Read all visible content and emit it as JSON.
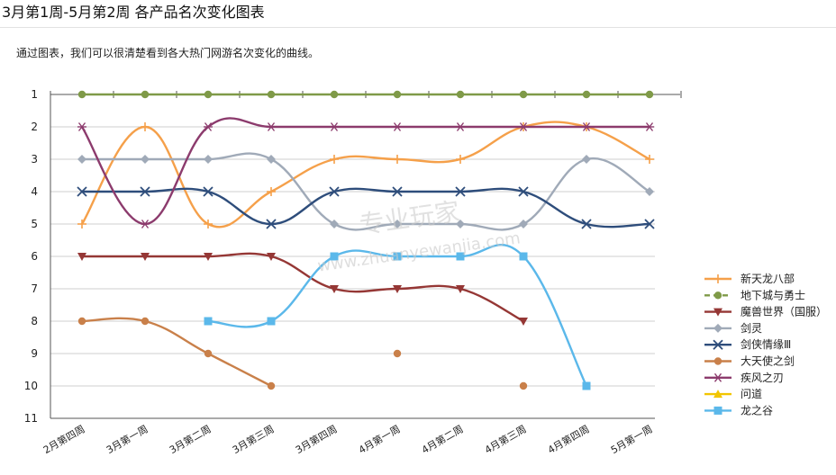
{
  "page": {
    "title": "3月第1周-5月第2周 各产品名次变化图表",
    "subtitle": "通过图表，我们可以很清楚看到各大热门网游名次变化的曲线。"
  },
  "watermark": {
    "line1": "专业玩家",
    "line2": "www.zhuanyewanjia.com"
  },
  "chart_data": {
    "type": "line",
    "title": "",
    "xlabel": "",
    "ylabel": "",
    "categories": [
      "2月第四周",
      "3月第一周",
      "3月第二周",
      "3月第三周",
      "3月第四周",
      "4月第一周",
      "4月第二周",
      "4月第三周",
      "4月第四周",
      "5月第一周"
    ],
    "y_ticks": [
      1,
      2,
      3,
      4,
      5,
      6,
      7,
      8,
      9,
      10,
      11
    ],
    "ylim": [
      1,
      11
    ],
    "y_inverted": true,
    "grid": true,
    "legend_position": "right",
    "series": [
      {
        "name": "新天龙八部",
        "color": "#f5a04a",
        "marker": "plus",
        "values": [
          5,
          2,
          5,
          4,
          3,
          3,
          3,
          2,
          2,
          3
        ]
      },
      {
        "name": "地下城与勇士",
        "color": "#7f9a48",
        "marker": "circle",
        "dashed": true,
        "values": [
          1,
          1,
          1,
          1,
          1,
          1,
          1,
          1,
          1,
          1
        ]
      },
      {
        "name": "魔兽世界（国服）",
        "color": "#953735",
        "marker": "triangle-down",
        "values": [
          6,
          6,
          6,
          6,
          7,
          7,
          7,
          8,
          null,
          null
        ]
      },
      {
        "name": "剑灵",
        "color": "#a0aab8",
        "marker": "diamond",
        "values": [
          3,
          3,
          3,
          3,
          5,
          5,
          5,
          5,
          3,
          4
        ]
      },
      {
        "name": "剑侠情缘Ⅲ",
        "color": "#2e4d7b",
        "marker": "x",
        "values": [
          4,
          4,
          4,
          5,
          4,
          4,
          4,
          4,
          5,
          5
        ]
      },
      {
        "name": "大天使之剑",
        "color": "#c9804a",
        "marker": "circle",
        "values": [
          8,
          8,
          9,
          10,
          null,
          9,
          null,
          10,
          null,
          null
        ]
      },
      {
        "name": "疾风之刃",
        "color": "#8c3b6d",
        "marker": "asterisk",
        "values": [
          2,
          5,
          2,
          2,
          2,
          2,
          2,
          2,
          2,
          2
        ]
      },
      {
        "name": "问道",
        "color": "#f2c500",
        "marker": "triangle-up",
        "values": [
          null,
          null,
          null,
          null,
          null,
          null,
          null,
          null,
          null,
          null
        ]
      },
      {
        "name": "龙之谷",
        "color": "#5bb8ea",
        "marker": "square",
        "values": [
          null,
          null,
          8,
          8,
          6,
          6,
          6,
          6,
          10,
          null
        ]
      }
    ]
  }
}
